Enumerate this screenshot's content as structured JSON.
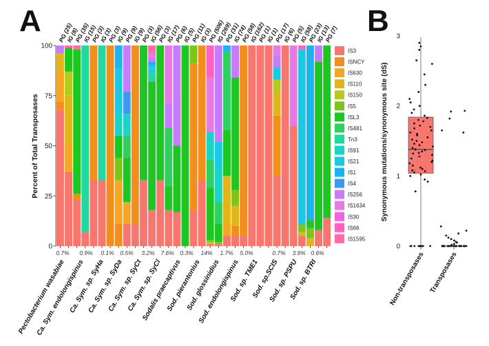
{
  "panel_a": {
    "letter": "A",
    "ylabel": "Percent of Total Transposases",
    "yticks": [
      0,
      25,
      50,
      75,
      100
    ],
    "top_labels": [
      "PG (25)",
      "IG (8)",
      "PG (35)",
      "IG (15)",
      "PG (3)",
      "IG (3)",
      "PG (3)",
      "IG (9)",
      "PG (9)",
      "IG (9)",
      "PG (3)",
      "IG (56)",
      "PG (3)",
      "IG (17)",
      "PG (6)",
      "IG (5)",
      "PG (11)",
      "IG (3)",
      "PG (506)",
      "IG (269)",
      "PG (31)",
      "IG (74)",
      "PG (58)",
      "IG (162)",
      "PG (1)",
      "IG (1)",
      "PG (17)",
      "IG (6)",
      "PG (5)",
      "IG (58)",
      "PG (23)",
      "IG (13)",
      "PG (7)"
    ],
    "organisms": [
      "Pectobacterium wasabiae",
      "Ca. Sym. endolongispinus",
      "Ca. Sym. sp. SyHa",
      "Ca. Sym. sp. SyDa",
      "Ca. Sym. sp. SyCt",
      "Ca. Sym. sp. SyCl",
      "Sodalis praecaptivus",
      "Sod. pierantonius",
      "Sod. glossinidius",
      "Sod. endolongispinus",
      "Sod. sp. TME1",
      "Sod. sp.SCIS",
      "Sod. sp. PSPU",
      "Sod. sp. BTRI"
    ],
    "percentages": [
      "0.7%",
      "0.9%",
      "0.1%",
      "0.5%",
      "3.2%",
      "7.6%",
      "0.3%",
      "14%",
      "1.7%",
      "5.0%",
      "0.7%",
      "3.9%",
      "0.6%"
    ],
    "legend": [
      {
        "name": "IS3",
        "color": "#f8766d"
      },
      {
        "name": "ISNCY",
        "color": "#f28e1c"
      },
      {
        "name": "IS630",
        "color": "#f5a623"
      },
      {
        "name": "IS110",
        "color": "#e3b51a"
      },
      {
        "name": "IS150",
        "color": "#b7c91a"
      },
      {
        "name": "IS5",
        "color": "#7cc61a"
      },
      {
        "name": "ISL3",
        "color": "#1ec622"
      },
      {
        "name": "IS481",
        "color": "#2fd060"
      },
      {
        "name": "Tn3",
        "color": "#21d9a0"
      },
      {
        "name": "IS91",
        "color": "#1ad4c6"
      },
      {
        "name": "IS21",
        "color": "#1ac9e3"
      },
      {
        "name": "IS1",
        "color": "#1ab5f0"
      },
      {
        "name": "IS4",
        "color": "#3a9af0"
      },
      {
        "name": "IS256",
        "color": "#c77cff"
      },
      {
        "name": "IS1634",
        "color": "#e87ae6"
      },
      {
        "name": "IS30",
        "color": "#f063e0"
      },
      {
        "name": "IS66",
        "color": "#ff61c3"
      },
      {
        "name": "IS1595",
        "color": "#ff6ca5"
      }
    ]
  },
  "panel_b": {
    "letter": "B",
    "ylabel": "Synonymous mutations/synonymous site (dS)",
    "yticks": [
      0,
      1,
      2,
      3
    ],
    "categories": [
      "Non-transposases",
      "Transposases"
    ]
  },
  "chart_data": [
    {
      "type": "bar",
      "stacked": true,
      "title": "",
      "ylabel": "Percent of Total Transposases",
      "ylim": [
        0,
        100
      ],
      "categories": [
        "PG (25)",
        "IG (8)",
        "PG (35)",
        "IG (15)",
        "PG (3)",
        "IG (3)",
        "PG (3)",
        "IG (9)",
        "PG (9)",
        "IG (9)",
        "PG (3)",
        "IG (56)",
        "PG (3)",
        "IG (17)",
        "PG (6)",
        "IG (5)",
        "PG (11)",
        "IG (3)",
        "PG (506)",
        "IG (269)",
        "PG (31)",
        "IG (74)",
        "PG (58)",
        "IG (162)",
        "PG (1)",
        "IG (1)",
        "PG (17)",
        "IG (6)",
        "PG (5)",
        "IG (58)",
        "PG (23)",
        "IG (13)",
        "PG (7)"
      ],
      "bars": [
        [
          [
            "IS3",
            68
          ],
          [
            "ISNCY",
            4
          ],
          [
            "IS630",
            16
          ],
          [
            "IS110",
            8
          ],
          [
            "IS256",
            4
          ]
        ],
        [
          [
            "IS3",
            37
          ],
          [
            "IS630",
            13
          ],
          [
            "IS110",
            25
          ],
          [
            "IS150",
            12
          ],
          [
            "ISL3",
            12
          ],
          [
            "IS1595",
            1
          ]
        ],
        [
          [
            "IS3",
            23
          ],
          [
            "ISNCY",
            3
          ],
          [
            "ISL3",
            72
          ],
          [
            "IS1595",
            2
          ]
        ],
        [
          [
            "IS3",
            7
          ],
          [
            "Tn3",
            93
          ]
        ],
        [
          [
            "IS3",
            33
          ],
          [
            "ISNCY",
            67
          ]
        ],
        [
          [
            "IS3",
            33
          ],
          [
            "Tn3",
            67
          ]
        ],
        [
          [
            "ISNCY",
            100
          ]
        ],
        [
          [
            "ISNCY",
            11
          ],
          [
            "IS630",
            22
          ],
          [
            "IS5",
            11
          ],
          [
            "ISL3",
            11
          ],
          [
            "IS91",
            11
          ],
          [
            "IS21",
            23
          ],
          [
            "IS1",
            11
          ]
        ],
        [
          [
            "IS3",
            11
          ],
          [
            "IS630",
            11
          ],
          [
            "ISL3",
            22
          ],
          [
            "IS481",
            11
          ],
          [
            "IS91",
            11
          ],
          [
            "IS4",
            11
          ],
          [
            "IS256",
            23
          ]
        ],
        [
          [
            "IS3",
            11
          ],
          [
            "ISNCY",
            89
          ]
        ],
        [
          [
            "IS3",
            33
          ],
          [
            "ISL3",
            67
          ]
        ],
        [
          [
            "IS3",
            18
          ],
          [
            "ISL3",
            64
          ],
          [
            "Tn3",
            4
          ],
          [
            "IS91",
            2
          ],
          [
            "IS21",
            2
          ],
          [
            "IS1",
            2
          ],
          [
            "IS256",
            2
          ],
          [
            "IS1634",
            2
          ],
          [
            "IS1595",
            4
          ]
        ],
        [
          [
            "IS3",
            33
          ],
          [
            "ISL3",
            67
          ]
        ],
        [
          [
            "IS3",
            18
          ],
          [
            "ISL3",
            12
          ],
          [
            "IS481",
            29
          ],
          [
            "IS256",
            12
          ],
          [
            "IS1634",
            29
          ]
        ],
        [
          [
            "IS3",
            17
          ],
          [
            "ISL3",
            33
          ],
          [
            "IS256",
            50
          ]
        ],
        [
          [
            "ISL3",
            100
          ]
        ],
        [
          [
            "IS3",
            18
          ],
          [
            "ISNCY",
            73
          ],
          [
            "IS5",
            9
          ]
        ],
        [
          [
            "IS3",
            33
          ],
          [
            "ISNCY",
            67
          ]
        ],
        [
          [
            "IS3",
            1
          ],
          [
            "IS150",
            1
          ],
          [
            "IS5",
            1
          ],
          [
            "ISL3",
            26
          ],
          [
            "IS481",
            14
          ],
          [
            "IS91",
            14
          ],
          [
            "IS1634",
            27
          ],
          [
            "IS66",
            16
          ]
        ],
        [
          [
            "IS3",
            1
          ],
          [
            "IS5",
            1
          ],
          [
            "ISL3",
            9
          ],
          [
            "IS481",
            11
          ],
          [
            "IS91",
            17
          ],
          [
            "IS21",
            13
          ],
          [
            "IS256",
            48
          ]
        ],
        [
          [
            "IS3",
            5
          ],
          [
            "IS630",
            7
          ],
          [
            "IS110",
            23
          ],
          [
            "ISL3",
            23
          ],
          [
            "IS481",
            39
          ],
          [
            "IS1",
            3
          ]
        ],
        [
          [
            "IS3",
            5
          ],
          [
            "ISNCY",
            5
          ],
          [
            "IS110",
            10
          ],
          [
            "IS5",
            8
          ],
          [
            "ISL3",
            56
          ],
          [
            "IS256",
            16
          ]
        ],
        [
          [
            "IS3",
            5
          ],
          [
            "ISNCY",
            95
          ]
        ],
        [
          [
            "IS3",
            100
          ]
        ],
        [
          [
            "IS3",
            100
          ]
        ],
        [
          [
            "IS3",
            100
          ]
        ],
        [
          [
            "IS3",
            35
          ],
          [
            "ISNCY",
            30
          ],
          [
            "IS110",
            12
          ],
          [
            "IS150",
            6
          ],
          [
            "IS21",
            6
          ],
          [
            "IS256",
            6
          ],
          [
            "IS1634",
            5
          ]
        ],
        [
          [
            "IS3",
            100
          ]
        ],
        [
          [
            "IS3",
            60
          ],
          [
            "IS1634",
            40
          ]
        ],
        [
          [
            "IS3",
            5
          ],
          [
            "IS110",
            2
          ],
          [
            "IS5",
            4
          ],
          [
            "IS21",
            87
          ],
          [
            "IS66",
            2
          ]
        ],
        [
          [
            "IS110",
            4
          ],
          [
            "IS5",
            5
          ],
          [
            "ISL3",
            4
          ],
          [
            "IS1",
            87
          ]
        ],
        [
          [
            "IS3",
            8
          ],
          [
            "ISL3",
            84
          ],
          [
            "IS256",
            8
          ]
        ],
        [
          [
            "IS3",
            14
          ],
          [
            "ISL3",
            86
          ]
        ]
      ]
    },
    {
      "type": "box",
      "title": "",
      "ylabel": "Synonymous mutations/synonymous site (dS)",
      "ylim": [
        0,
        3
      ],
      "categories": [
        "Non-transposases",
        "Transposases"
      ],
      "box": {
        "category": "Non-transposases",
        "q1": 1.04,
        "median": 1.38,
        "q3": 1.84,
        "whisker_low": 0.0,
        "whisker_high": 2.98,
        "fill": "#f8766d"
      },
      "points": {
        "Non-transposases": [
          0.0,
          0.0,
          0.0,
          0.0,
          0.0,
          0.0,
          0.0,
          0.0,
          0.0,
          0.0,
          0.78,
          0.92,
          0.95,
          1.0,
          1.02,
          1.05,
          1.07,
          1.08,
          1.1,
          1.12,
          1.15,
          1.18,
          1.2,
          1.22,
          1.25,
          1.28,
          1.3,
          1.32,
          1.33,
          1.35,
          1.37,
          1.38,
          1.4,
          1.42,
          1.44,
          1.46,
          1.48,
          1.5,
          1.52,
          1.55,
          1.58,
          1.6,
          1.62,
          1.65,
          1.68,
          1.7,
          1.72,
          1.75,
          1.78,
          1.8,
          1.83,
          1.86,
          1.9,
          1.95,
          2.0,
          2.05,
          2.1,
          2.2,
          2.3,
          2.45,
          2.6,
          2.65,
          2.8,
          2.85,
          2.9
        ],
        "Transposases": [
          0.0,
          0.0,
          0.0,
          0.0,
          0.0,
          0.0,
          0.0,
          0.0,
          0.0,
          0.0,
          0.0,
          0.0,
          0.0,
          0.0,
          0.0,
          0.0,
          0.0,
          0.0,
          0.0,
          0.0,
          0.0,
          0.0,
          0.0,
          0.0,
          0.0,
          0.0,
          0.0,
          0.0,
          0.0,
          0.0,
          0.0,
          0.02,
          0.03,
          0.05,
          0.06,
          0.08,
          0.1,
          0.12,
          0.15,
          0.18,
          0.22,
          0.28,
          1.62,
          1.65,
          1.82,
          1.92,
          1.93
        ]
      }
    }
  ]
}
